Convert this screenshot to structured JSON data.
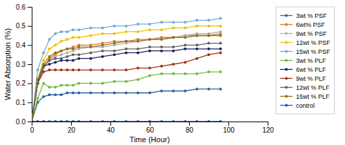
{
  "chart_data": {
    "type": "line",
    "xlabel": "Time (Hour)",
    "ylabel": "Water Absorption (%)",
    "xlim": [
      0,
      120
    ],
    "ylim": [
      0,
      0.6
    ],
    "xticks": [
      0,
      20,
      40,
      60,
      80,
      100,
      120
    ],
    "yticks": [
      {
        "value": 0.0,
        "label": "0.0"
      },
      0.1,
      0.2,
      0.3,
      0.4,
      0.5,
      0.6
    ],
    "grid": false,
    "legend": "right",
    "marker": "circle",
    "x": [
      0,
      3,
      6,
      9,
      12,
      15,
      18,
      21,
      24,
      30,
      36,
      42,
      48,
      54,
      60,
      66,
      72,
      78,
      84,
      90,
      96
    ],
    "series": [
      {
        "name": "3wt % PSF",
        "color": "#3060a0",
        "values": [
          0,
          0.1,
          0.13,
          0.14,
          0.14,
          0.14,
          0.15,
          0.15,
          0.15,
          0.15,
          0.15,
          0.15,
          0.15,
          0.15,
          0.15,
          0.16,
          0.16,
          0.16,
          0.17,
          0.17,
          0.17
        ]
      },
      {
        "name": "6wt% PSF",
        "color": "#e07828",
        "values": [
          0,
          0.2,
          0.28,
          0.33,
          0.35,
          0.37,
          0.38,
          0.39,
          0.4,
          0.4,
          0.41,
          0.42,
          0.42,
          0.43,
          0.43,
          0.44,
          0.44,
          0.45,
          0.45,
          0.45,
          0.46
        ]
      },
      {
        "name": "9wt % PSF",
        "color": "#b0b0b0",
        "values": [
          0,
          0.2,
          0.28,
          0.32,
          0.34,
          0.35,
          0.36,
          0.37,
          0.38,
          0.39,
          0.39,
          0.4,
          0.41,
          0.42,
          0.43,
          0.43,
          0.44,
          0.45,
          0.46,
          0.46,
          0.47
        ]
      },
      {
        "name": "12wt % PSF",
        "color": "#f0c000",
        "values": [
          0,
          0.22,
          0.32,
          0.38,
          0.4,
          0.42,
          0.43,
          0.44,
          0.44,
          0.45,
          0.46,
          0.46,
          0.47,
          0.47,
          0.48,
          0.48,
          0.49,
          0.49,
          0.5,
          0.5,
          0.5
        ]
      },
      {
        "name": "15wt % PSF",
        "color": "#70aad8",
        "values": [
          0,
          0.27,
          0.36,
          0.43,
          0.46,
          0.47,
          0.47,
          0.48,
          0.48,
          0.49,
          0.49,
          0.5,
          0.5,
          0.51,
          0.51,
          0.52,
          0.52,
          0.52,
          0.53,
          0.53,
          0.54
        ]
      },
      {
        "name": "3wt % PLF",
        "color": "#70b840",
        "values": [
          0,
          0.12,
          0.2,
          0.18,
          0.18,
          0.19,
          0.19,
          0.19,
          0.2,
          0.2,
          0.2,
          0.21,
          0.21,
          0.22,
          0.24,
          0.25,
          0.25,
          0.25,
          0.25,
          0.26,
          0.26
        ]
      },
      {
        "name": "6wt % PLF",
        "color": "#1a2060",
        "values": [
          0,
          0.2,
          0.29,
          0.3,
          0.31,
          0.32,
          0.32,
          0.32,
          0.33,
          0.33,
          0.34,
          0.35,
          0.36,
          0.36,
          0.37,
          0.37,
          0.37,
          0.38,
          0.38,
          0.38,
          0.38
        ]
      },
      {
        "name": "9wt % PLF",
        "color": "#a03010",
        "values": [
          0,
          0.2,
          0.26,
          0.27,
          0.27,
          0.27,
          0.27,
          0.27,
          0.27,
          0.27,
          0.27,
          0.27,
          0.27,
          0.28,
          0.28,
          0.29,
          0.3,
          0.31,
          0.33,
          0.35,
          0.36
        ]
      },
      {
        "name": "12wt % PLF",
        "color": "#606060",
        "values": [
          0,
          0.2,
          0.29,
          0.32,
          0.33,
          0.33,
          0.34,
          0.35,
          0.35,
          0.36,
          0.37,
          0.37,
          0.38,
          0.38,
          0.39,
          0.39,
          0.39,
          0.4,
          0.4,
          0.41,
          0.41
        ]
      },
      {
        "name": "15wt % PLF",
        "color": "#907020",
        "values": [
          0,
          0.22,
          0.3,
          0.34,
          0.36,
          0.37,
          0.38,
          0.38,
          0.39,
          0.39,
          0.4,
          0.41,
          0.42,
          0.42,
          0.43,
          0.43,
          0.44,
          0.44,
          0.45,
          0.45,
          0.45
        ]
      },
      {
        "name": "control",
        "color": "#2050c0",
        "values": [
          0,
          0.0,
          0.0,
          0.0,
          0.0,
          0.0,
          0.0,
          0.0,
          0.0,
          0.0,
          0.0,
          0.0,
          0.0,
          0.0,
          0.0,
          0.0,
          0.0,
          0.0,
          0.0,
          0.0,
          0.0
        ]
      }
    ]
  }
}
